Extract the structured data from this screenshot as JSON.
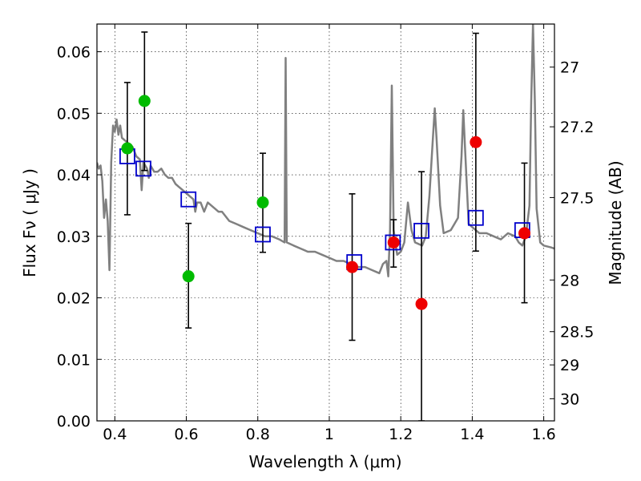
{
  "chart_data": {
    "type": "scatter",
    "xlabel": "Wavelength  λ (μm)",
    "ylabel": "Flux  Fν  ( μJy )",
    "ylabel_right": "Magnitude (AB)",
    "xlim": [
      0.35,
      1.63
    ],
    "ylim": [
      0.0,
      0.0645
    ],
    "grid": true,
    "x_ticks": [
      0.4,
      0.6,
      0.8,
      1.0,
      1.2,
      1.4,
      1.6
    ],
    "x_tick_labels": [
      "0.4",
      "0.6",
      "0.8",
      "1",
      "1.2",
      "1.4",
      "1.6"
    ],
    "y_ticks": [
      0.0,
      0.01,
      0.02,
      0.03,
      0.04,
      0.05,
      0.06
    ],
    "y_tick_labels": [
      "0.00",
      "0.01",
      "0.02",
      "0.03",
      "0.04",
      "0.05",
      "0.06"
    ],
    "right_ticks": [
      {
        "label": "27",
        "flux": 0.0575
      },
      {
        "label": "27.2",
        "flux": 0.0478
      },
      {
        "label": "27.5",
        "flux": 0.0363
      },
      {
        "label": "28",
        "flux": 0.0229
      },
      {
        "label": "28.5",
        "flux": 0.0145
      },
      {
        "label": "29",
        "flux": 0.0091
      },
      {
        "label": "30",
        "flux": 0.0036
      }
    ],
    "series": [
      {
        "name": "model spectrum",
        "kind": "line",
        "color": "#808080",
        "points": [
          [
            0.35,
            0.042
          ],
          [
            0.355,
            0.041
          ],
          [
            0.36,
            0.0415
          ],
          [
            0.365,
            0.039
          ],
          [
            0.37,
            0.033
          ],
          [
            0.375,
            0.036
          ],
          [
            0.38,
            0.0325
          ],
          [
            0.385,
            0.0245
          ],
          [
            0.39,
            0.042
          ],
          [
            0.395,
            0.048
          ],
          [
            0.4,
            0.047
          ],
          [
            0.405,
            0.049
          ],
          [
            0.41,
            0.0465
          ],
          [
            0.415,
            0.048
          ],
          [
            0.42,
            0.046
          ],
          [
            0.43,
            0.0455
          ],
          [
            0.44,
            0.045
          ],
          [
            0.45,
            0.0445
          ],
          [
            0.46,
            0.043
          ],
          [
            0.47,
            0.0425
          ],
          [
            0.475,
            0.0375
          ],
          [
            0.48,
            0.042
          ],
          [
            0.49,
            0.041
          ],
          [
            0.495,
            0.0395
          ],
          [
            0.5,
            0.0415
          ],
          [
            0.51,
            0.0405
          ],
          [
            0.52,
            0.0405
          ],
          [
            0.53,
            0.041
          ],
          [
            0.54,
            0.04
          ],
          [
            0.55,
            0.0395
          ],
          [
            0.56,
            0.0395
          ],
          [
            0.57,
            0.0385
          ],
          [
            0.58,
            0.038
          ],
          [
            0.59,
            0.0375
          ],
          [
            0.6,
            0.037
          ],
          [
            0.61,
            0.0365
          ],
          [
            0.62,
            0.036
          ],
          [
            0.625,
            0.034
          ],
          [
            0.63,
            0.0355
          ],
          [
            0.64,
            0.0355
          ],
          [
            0.65,
            0.034
          ],
          [
            0.66,
            0.0355
          ],
          [
            0.67,
            0.035
          ],
          [
            0.68,
            0.0345
          ],
          [
            0.69,
            0.034
          ],
          [
            0.7,
            0.034
          ],
          [
            0.72,
            0.0325
          ],
          [
            0.74,
            0.032
          ],
          [
            0.76,
            0.0315
          ],
          [
            0.78,
            0.031
          ],
          [
            0.8,
            0.0305
          ],
          [
            0.82,
            0.03
          ],
          [
            0.84,
            0.03
          ],
          [
            0.86,
            0.0295
          ],
          [
            0.875,
            0.029
          ],
          [
            0.878,
            0.059
          ],
          [
            0.881,
            0.029
          ],
          [
            0.9,
            0.0285
          ],
          [
            0.92,
            0.028
          ],
          [
            0.94,
            0.0275
          ],
          [
            0.96,
            0.0275
          ],
          [
            0.98,
            0.027
          ],
          [
            1.0,
            0.0265
          ],
          [
            1.02,
            0.026
          ],
          [
            1.04,
            0.026
          ],
          [
            1.06,
            0.0255
          ],
          [
            1.08,
            0.025
          ],
          [
            1.1,
            0.025
          ],
          [
            1.12,
            0.0245
          ],
          [
            1.14,
            0.024
          ],
          [
            1.15,
            0.0255
          ],
          [
            1.16,
            0.026
          ],
          [
            1.165,
            0.0235
          ],
          [
            1.17,
            0.031
          ],
          [
            1.175,
            0.0545
          ],
          [
            1.18,
            0.031
          ],
          [
            1.19,
            0.027
          ],
          [
            1.2,
            0.0275
          ],
          [
            1.21,
            0.029
          ],
          [
            1.22,
            0.0355
          ],
          [
            1.23,
            0.031
          ],
          [
            1.24,
            0.029
          ],
          [
            1.26,
            0.0285
          ],
          [
            1.27,
            0.03
          ],
          [
            1.28,
            0.0365
          ],
          [
            1.29,
            0.046
          ],
          [
            1.295,
            0.0508
          ],
          [
            1.3,
            0.046
          ],
          [
            1.31,
            0.035
          ],
          [
            1.32,
            0.0305
          ],
          [
            1.34,
            0.031
          ],
          [
            1.36,
            0.033
          ],
          [
            1.37,
            0.043
          ],
          [
            1.375,
            0.0505
          ],
          [
            1.38,
            0.044
          ],
          [
            1.39,
            0.032
          ],
          [
            1.4,
            0.0315
          ],
          [
            1.42,
            0.0305
          ],
          [
            1.44,
            0.0305
          ],
          [
            1.46,
            0.03
          ],
          [
            1.48,
            0.0295
          ],
          [
            1.49,
            0.03
          ],
          [
            1.5,
            0.0305
          ],
          [
            1.52,
            0.03
          ],
          [
            1.53,
            0.029
          ],
          [
            1.54,
            0.0285
          ],
          [
            1.55,
            0.03
          ],
          [
            1.56,
            0.035
          ],
          [
            1.565,
            0.052
          ],
          [
            1.57,
            0.0645
          ],
          [
            1.575,
            0.052
          ],
          [
            1.58,
            0.0345
          ],
          [
            1.59,
            0.029
          ],
          [
            1.6,
            0.0285
          ],
          [
            1.62,
            0.0282
          ],
          [
            1.63,
            0.028
          ]
        ]
      },
      {
        "name": "model photometry",
        "kind": "square",
        "color": "#0000cc",
        "points": [
          [
            0.435,
            0.043
          ],
          [
            0.48,
            0.041
          ],
          [
            0.606,
            0.036
          ],
          [
            0.814,
            0.0303
          ],
          [
            1.07,
            0.0258
          ],
          [
            1.178,
            0.029
          ],
          [
            1.258,
            0.0309
          ],
          [
            1.41,
            0.033
          ],
          [
            1.54,
            0.031
          ]
        ]
      },
      {
        "name": "observed (green)",
        "kind": "point",
        "color": "#00bb00",
        "points": [
          {
            "x": 0.435,
            "y": 0.0443,
            "lo": 0.0335,
            "hi": 0.055
          },
          {
            "x": 0.483,
            "y": 0.052,
            "lo": 0.0407,
            "hi": 0.0632
          },
          {
            "x": 0.606,
            "y": 0.0235,
            "lo": 0.0151,
            "hi": 0.0321
          },
          {
            "x": 0.814,
            "y": 0.0355,
            "lo": 0.0274,
            "hi": 0.0435
          }
        ]
      },
      {
        "name": "observed (red)",
        "kind": "point",
        "color": "#ee0000",
        "points": [
          {
            "x": 1.064,
            "y": 0.025,
            "lo": 0.0131,
            "hi": 0.0369
          },
          {
            "x": 1.18,
            "y": 0.029,
            "lo": 0.025,
            "hi": 0.0327
          },
          {
            "x": 1.258,
            "y": 0.019,
            "lo": 0.0,
            "hi": 0.0405
          },
          {
            "x": 1.41,
            "y": 0.0453,
            "lo": 0.0276,
            "hi": 0.063
          },
          {
            "x": 1.546,
            "y": 0.0305,
            "lo": 0.0192,
            "hi": 0.0419
          }
        ]
      }
    ]
  }
}
